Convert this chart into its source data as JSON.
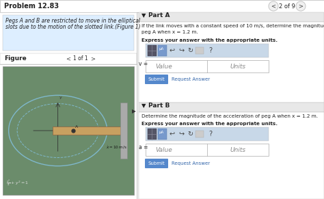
{
  "title": "Problem 12.83",
  "nav_text": "2 of 9",
  "problem_text_line1": "Pegs A and B are restricted to move in the elliptical",
  "problem_text_line2": "slots due to the motion of the slotted link.(Figure 1)",
  "figure_label": "Figure",
  "figure_nav": "1 of 1",
  "part_a_label": "Part A",
  "part_a_q1": "If the link moves with a constant speed of 10 m/s, determine the magnitude of the velocity of",
  "part_a_q2": "peg A when x = 1.2 m.",
  "part_a_units_label": "Express your answer with the appropriate units.",
  "part_a_var": "v =",
  "part_b_label": "Part B",
  "part_b_question": "Determine the magnitude of the acceleration of peg A when x = 1.2 m.",
  "part_b_units_label": "Express your answer with the appropriate units.",
  "part_b_var": "a =",
  "submit_text": "Submit",
  "request_text": "Request Answer",
  "value_placeholder": "Value",
  "units_placeholder": "Units",
  "bg_color": "#f0f0f0",
  "white": "#ffffff",
  "header_bg": "#f5f5f5",
  "left_desc_bg": "#ddeeff",
  "figure_bg": "#6b8c6b",
  "ellipse_color": "#7fb8cc",
  "link_color": "#c8a060",
  "toolbar_bg": "#c8d8e8",
  "icon_dark": "#555566",
  "icon_blue": "#8899bb",
  "submit_btn": "#5588cc",
  "part_header_bg": "#e8e8e8",
  "border_color": "#bbbbbb",
  "text_dark": "#222222",
  "text_mid": "#444444",
  "text_light": "#888888",
  "link_blue": "#3366aa",
  "nav_circle_bg": "#f0f0f0",
  "input_border": "#aaaaaa"
}
